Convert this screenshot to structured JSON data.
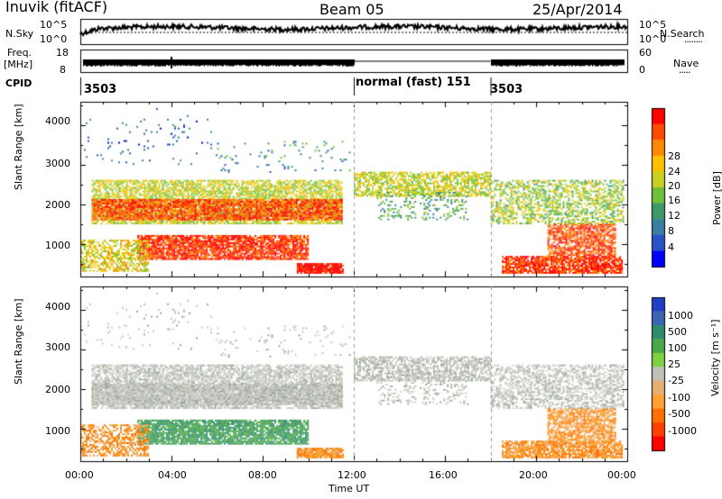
{
  "header": {
    "station": "Inuvik (fitACF)",
    "beam": "Beam 05",
    "date": "25/Apr/2014"
  },
  "noise_panel": {
    "left_label": "N.Sky",
    "right_label": "N.Search",
    "left_ticks": [
      "10^5",
      "10^0"
    ],
    "right_ticks": [
      "10^5",
      "10^0"
    ]
  },
  "freq_panel": {
    "left_label_1": "Freq.",
    "left_label_2": "[MHz]",
    "right_label": "Nave",
    "left_ticks": [
      "18",
      "8"
    ],
    "right_ticks": [
      "60",
      "0"
    ]
  },
  "cpid_panel": {
    "label": "CPID",
    "segments": [
      {
        "start_hr": 0,
        "text": "3503"
      },
      {
        "start_hr": 12,
        "text": "normal (fast) 151"
      },
      {
        "start_hr": 18,
        "text": "3503"
      }
    ]
  },
  "x_axis": {
    "label": "Time UT",
    "ticks": [
      "00:00",
      "04:00",
      "08:00",
      "12:00",
      "16:00",
      "20:00",
      "00:00"
    ]
  },
  "chart_data": [
    {
      "type": "heatmap",
      "name": "power",
      "ylabel": "Slant Range [km]",
      "xlim": [
        0,
        24
      ],
      "ylim": [
        180,
        4600
      ],
      "yticks": [
        "1000",
        "2000",
        "3000",
        "4000"
      ],
      "colorbar_label": "Power [dB]",
      "colorbar_ticks": [
        "4",
        "8",
        "12",
        "16",
        "20",
        "24",
        "28"
      ],
      "colorbar_colors": [
        "#0000ff",
        "#2a52c8",
        "#3a7fa0",
        "#3f9a6a",
        "#6fbf3a",
        "#c8d21e",
        "#ffc000",
        "#ff8a00",
        "#ff4a00",
        "#ff0000"
      ]
    },
    {
      "type": "heatmap",
      "name": "velocity",
      "ylabel": "Slant Range [km]",
      "xlim": [
        0,
        24
      ],
      "ylim": [
        180,
        4600
      ],
      "yticks": [
        "1000",
        "2000",
        "3000",
        "4000"
      ],
      "colorbar_label": "Velocity [m s⁻¹]",
      "colorbar_ticks": [
        "1000",
        "500",
        "100",
        "25",
        "-25",
        "-100",
        "-500",
        "-1000"
      ],
      "colorbar_colors": [
        "#1f3fc8",
        "#3b66b4",
        "#2e8c6e",
        "#4aa84a",
        "#7fd040",
        "#c0c0b8",
        "#e8b070",
        "#ffa030",
        "#ff7000",
        "#ff4000",
        "#ff0000"
      ]
    }
  ]
}
